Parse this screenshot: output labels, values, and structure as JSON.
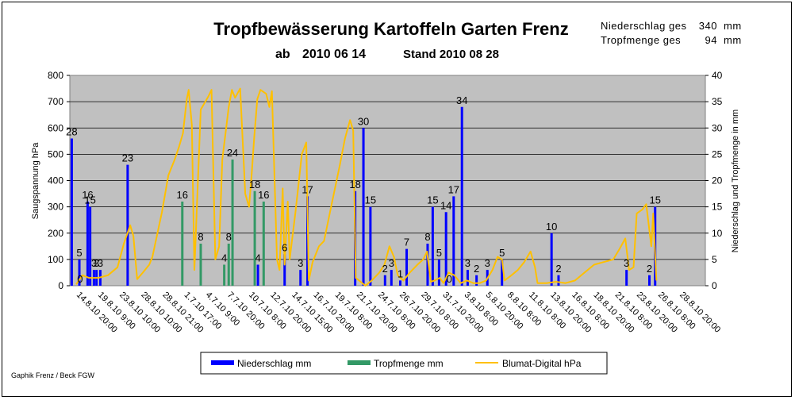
{
  "chart_data": {
    "type": "bar",
    "title": "Tropfbewässerung Kartoffeln Garten Frenz",
    "subtitle": {
      "start_prefix": "ab",
      "start_date": "2010 06 14",
      "stand": "Stand 2010 08 28"
    },
    "summary": {
      "niederschlag_label": "Niederschlag ges",
      "niederschlag_value": "340",
      "niederschlag_unit": "mm",
      "tropfmenge_label": "Tropfmenge ges",
      "tropfmenge_value": "94",
      "tropfmenge_unit": "mm"
    },
    "ylabel_left": "Saugspannung hPa",
    "ylabel_right": "Niederschlag und Tropfmenge in mm",
    "ylim_left": [
      0,
      800
    ],
    "ylim_right": [
      0,
      40
    ],
    "yticks_left": [
      "0",
      "100",
      "200",
      "300",
      "400",
      "500",
      "600",
      "700",
      "800"
    ],
    "yticks_right": [
      "0",
      "5",
      "10",
      "15",
      "20",
      "25",
      "30",
      "35",
      "40"
    ],
    "grid": true,
    "legend_position": "bottom",
    "x_index_range": [
      0,
      100
    ],
    "categories": [
      "14.8.10 20:00",
      "19.8.10 9:00",
      "23.8.10 10:00",
      "28.8.10 10:00",
      "28.8.10 21:00",
      "1.7.10 17:00",
      "4.7.10 9:00",
      "7.7.10 20:00",
      "10.7.10 8:00",
      "12.7.10 20:00",
      "14.7.10 15:00",
      "16.7.10 20:00",
      "19.7.10 8:00",
      "21.7.10 20:00",
      "24.7.10 8:00",
      "26.7.10 20:00",
      "29.7.10 8:00",
      "31.7.10 20:00",
      "3.8.10 8:00",
      "5.8.10 20:00",
      "8.8.10 8:00",
      "11.8.10 8:00",
      "13.8.10 20:00",
      "16.8.10 8:00",
      "18.8.10 20:00",
      "21.8.10 8:00",
      "23.8.10 20:00",
      "26.8.10 8:00",
      "28.8.10 20:00"
    ],
    "series": [
      {
        "name": "Niederschlag mm",
        "kind": "bar",
        "axis": "right",
        "color": "#0000ff",
        "points": [
          {
            "x": 0.3,
            "y": 28
          },
          {
            "x": 1.5,
            "y": 5
          },
          {
            "x": 2.8,
            "y": 16
          },
          {
            "x": 3.2,
            "y": 15
          },
          {
            "x": 3.8,
            "y": 3
          },
          {
            "x": 4.2,
            "y": 3
          },
          {
            "x": 4.8,
            "y": 3
          },
          {
            "x": 9.1,
            "y": 23
          },
          {
            "x": 29.6,
            "y": 4
          },
          {
            "x": 33.8,
            "y": 6
          },
          {
            "x": 36.3,
            "y": 3
          },
          {
            "x": 37.4,
            "y": 17
          },
          {
            "x": 44.9,
            "y": 18
          },
          {
            "x": 46.2,
            "y": 30
          },
          {
            "x": 47.3,
            "y": 15
          },
          {
            "x": 49.6,
            "y": 2
          },
          {
            "x": 50.6,
            "y": 3
          },
          {
            "x": 52.0,
            "y": 1
          },
          {
            "x": 53.0,
            "y": 7
          },
          {
            "x": 56.3,
            "y": 8
          },
          {
            "x": 57.1,
            "y": 15
          },
          {
            "x": 58.1,
            "y": 5
          },
          {
            "x": 59.2,
            "y": 14
          },
          {
            "x": 59.7,
            "y": 0
          },
          {
            "x": 60.4,
            "y": 17
          },
          {
            "x": 61.7,
            "y": 34
          },
          {
            "x": 62.6,
            "y": 3
          },
          {
            "x": 64.0,
            "y": 2
          },
          {
            "x": 65.7,
            "y": 3
          },
          {
            "x": 68.0,
            "y": 5
          },
          {
            "x": 75.8,
            "y": 10
          },
          {
            "x": 76.9,
            "y": 2
          },
          {
            "x": 87.6,
            "y": 3
          },
          {
            "x": 91.2,
            "y": 2
          },
          {
            "x": 92.1,
            "y": 15
          }
        ]
      },
      {
        "name": "Tropfmenge mm",
        "kind": "bar",
        "axis": "right",
        "color": "#339966",
        "points": [
          {
            "x": 1.6,
            "y": 0
          },
          {
            "x": 17.7,
            "y": 16
          },
          {
            "x": 20.6,
            "y": 8
          },
          {
            "x": 24.3,
            "y": 4
          },
          {
            "x": 25.0,
            "y": 8
          },
          {
            "x": 25.6,
            "y": 24
          },
          {
            "x": 29.1,
            "y": 18
          },
          {
            "x": 30.5,
            "y": 16
          }
        ]
      },
      {
        "name": "Blumat-Digital hPa",
        "kind": "line",
        "axis": "left",
        "color": "#ffc000",
        "points": [
          {
            "x": 1.0,
            "y": 5
          },
          {
            "x": 2.0,
            "y": 40
          },
          {
            "x": 3.0,
            "y": 30
          },
          {
            "x": 4.5,
            "y": 30
          },
          {
            "x": 6.0,
            "y": 40
          },
          {
            "x": 7.5,
            "y": 70
          },
          {
            "x": 8.5,
            "y": 160
          },
          {
            "x": 9.5,
            "y": 230
          },
          {
            "x": 10.0,
            "y": 190
          },
          {
            "x": 10.6,
            "y": 25
          },
          {
            "x": 11.5,
            "y": 50
          },
          {
            "x": 12.5,
            "y": 80
          },
          {
            "x": 13.0,
            "y": 110
          },
          {
            "x": 14.5,
            "y": 280
          },
          {
            "x": 15.5,
            "y": 420
          },
          {
            "x": 16.5,
            "y": 480
          },
          {
            "x": 17.2,
            "y": 530
          },
          {
            "x": 17.8,
            "y": 580
          },
          {
            "x": 18.4,
            "y": 710
          },
          {
            "x": 18.7,
            "y": 745
          },
          {
            "x": 19.2,
            "y": 610
          },
          {
            "x": 19.6,
            "y": 60
          },
          {
            "x": 20.6,
            "y": 670
          },
          {
            "x": 21.8,
            "y": 720
          },
          {
            "x": 22.3,
            "y": 745
          },
          {
            "x": 22.9,
            "y": 100
          },
          {
            "x": 23.5,
            "y": 150
          },
          {
            "x": 24.0,
            "y": 480
          },
          {
            "x": 25.0,
            "y": 680
          },
          {
            "x": 25.5,
            "y": 745
          },
          {
            "x": 26.0,
            "y": 715
          },
          {
            "x": 26.8,
            "y": 750
          },
          {
            "x": 27.6,
            "y": 350
          },
          {
            "x": 28.2,
            "y": 300
          },
          {
            "x": 28.6,
            "y": 420
          },
          {
            "x": 29.0,
            "y": 560
          },
          {
            "x": 29.5,
            "y": 710
          },
          {
            "x": 30.0,
            "y": 745
          },
          {
            "x": 30.9,
            "y": 730
          },
          {
            "x": 31.4,
            "y": 680
          },
          {
            "x": 31.8,
            "y": 740
          },
          {
            "x": 32.6,
            "y": 100
          },
          {
            "x": 33.0,
            "y": 60
          },
          {
            "x": 33.5,
            "y": 370
          },
          {
            "x": 33.8,
            "y": 80
          },
          {
            "x": 34.3,
            "y": 320
          },
          {
            "x": 34.6,
            "y": 100
          },
          {
            "x": 35.5,
            "y": 280
          },
          {
            "x": 36.5,
            "y": 500
          },
          {
            "x": 37.2,
            "y": 545
          },
          {
            "x": 37.6,
            "y": 20
          },
          {
            "x": 38.2,
            "y": 90
          },
          {
            "x": 39.2,
            "y": 150
          },
          {
            "x": 40.0,
            "y": 170
          },
          {
            "x": 41.2,
            "y": 310
          },
          {
            "x": 42.5,
            "y": 460
          },
          {
            "x": 43.3,
            "y": 560
          },
          {
            "x": 44.1,
            "y": 630
          },
          {
            "x": 44.6,
            "y": 590
          },
          {
            "x": 45.0,
            "y": 30
          },
          {
            "x": 45.5,
            "y": 20
          },
          {
            "x": 46.5,
            "y": 0
          },
          {
            "x": 47.5,
            "y": 20
          },
          {
            "x": 48.7,
            "y": 50
          },
          {
            "x": 49.5,
            "y": 80
          },
          {
            "x": 50.3,
            "y": 150
          },
          {
            "x": 51.0,
            "y": 110
          },
          {
            "x": 51.6,
            "y": 40
          },
          {
            "x": 52.5,
            "y": 20
          },
          {
            "x": 53.5,
            "y": 50
          },
          {
            "x": 54.7,
            "y": 80
          },
          {
            "x": 55.6,
            "y": 100
          },
          {
            "x": 56.2,
            "y": 130
          },
          {
            "x": 56.8,
            "y": 15
          },
          {
            "x": 57.4,
            "y": 20
          },
          {
            "x": 58.2,
            "y": 30
          },
          {
            "x": 58.8,
            "y": 10
          },
          {
            "x": 59.6,
            "y": 50
          },
          {
            "x": 60.5,
            "y": 40
          },
          {
            "x": 61.5,
            "y": 10
          },
          {
            "x": 62.5,
            "y": 20
          },
          {
            "x": 63.5,
            "y": 10
          },
          {
            "x": 64.5,
            "y": 10
          },
          {
            "x": 65.5,
            "y": 20
          },
          {
            "x": 66.5,
            "y": 60
          },
          {
            "x": 67.3,
            "y": 110
          },
          {
            "x": 68.0,
            "y": 100
          },
          {
            "x": 68.4,
            "y": 20
          },
          {
            "x": 69.5,
            "y": 40
          },
          {
            "x": 70.5,
            "y": 60
          },
          {
            "x": 71.5,
            "y": 90
          },
          {
            "x": 72.5,
            "y": 130
          },
          {
            "x": 73.2,
            "y": 70
          },
          {
            "x": 73.6,
            "y": 10
          },
          {
            "x": 75.0,
            "y": 10
          },
          {
            "x": 76.5,
            "y": 15
          },
          {
            "x": 78.0,
            "y": 10
          },
          {
            "x": 79.5,
            "y": 20
          },
          {
            "x": 81.0,
            "y": 50
          },
          {
            "x": 82.5,
            "y": 80
          },
          {
            "x": 84.0,
            "y": 90
          },
          {
            "x": 85.5,
            "y": 100
          },
          {
            "x": 86.5,
            "y": 140
          },
          {
            "x": 87.4,
            "y": 180
          },
          {
            "x": 88.0,
            "y": 60
          },
          {
            "x": 88.7,
            "y": 70
          },
          {
            "x": 89.2,
            "y": 275
          },
          {
            "x": 90.1,
            "y": 290
          },
          {
            "x": 90.7,
            "y": 310
          },
          {
            "x": 91.2,
            "y": 210
          },
          {
            "x": 91.5,
            "y": 150
          },
          {
            "x": 91.8,
            "y": 275
          },
          {
            "x": 92.3,
            "y": 20
          }
        ]
      }
    ],
    "credit": "Gaphik Frenz / Beck FGW"
  }
}
